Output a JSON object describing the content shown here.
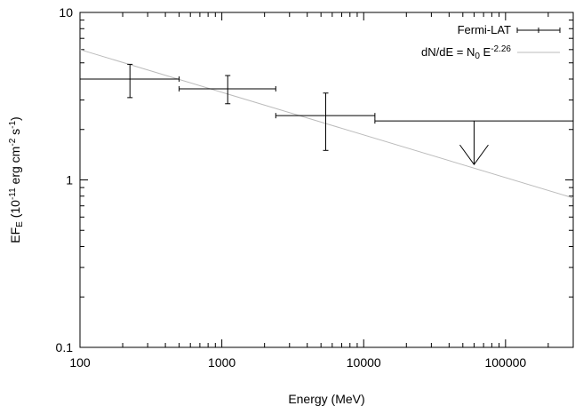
{
  "chart_data": {
    "type": "scatter",
    "xscale": "log",
    "yscale": "log",
    "xlim": [
      100,
      300000
    ],
    "ylim": [
      0.1,
      10
    ],
    "xlabel": "Energy (MeV)",
    "ylabel": {
      "main": "EF",
      "sub": "E",
      "units_open": " (10",
      "exp1": "-11",
      "units_mid": " erg cm",
      "exp2": "-2",
      "units_mid2": " s",
      "exp3": "-1",
      "units_close": ")"
    },
    "xticks": [
      {
        "value": 100,
        "label": "100"
      },
      {
        "value": 1000,
        "label": "1000"
      },
      {
        "value": 10000,
        "label": "10000"
      },
      {
        "value": 100000,
        "label": "100000"
      }
    ],
    "yticks": [
      {
        "value": 0.1,
        "label": "0.1"
      },
      {
        "value": 1,
        "label": "1"
      },
      {
        "value": 10,
        "label": "10"
      }
    ],
    "grid": false,
    "legend_position": "top-right",
    "series": [
      {
        "name": "Fermi-LAT",
        "kind": "errorbar",
        "color": "#000000",
        "points": [
          {
            "x": 225,
            "x_low": 100,
            "x_high": 500,
            "y": 4.0,
            "y_low": 3.1,
            "y_high": 4.9
          },
          {
            "x": 1100,
            "x_low": 500,
            "x_high": 2400,
            "y": 3.5,
            "y_low": 2.85,
            "y_high": 4.2
          },
          {
            "x": 5400,
            "x_low": 2400,
            "x_high": 12000,
            "y": 2.42,
            "y_low": 1.5,
            "y_high": 3.3
          }
        ],
        "upper_limits": [
          {
            "x": 60000,
            "x_low": 12000,
            "x_high": 300000,
            "y": 2.25
          }
        ]
      },
      {
        "name_parts": {
          "prefix": "dN/dE = N",
          "sub": "0",
          "mid": " E",
          "sup": "-2.26"
        },
        "kind": "powerlaw",
        "color": "#bbbbbb",
        "index": -2.26,
        "y_at_100": 6.0,
        "y_at_300000": 0.78
      }
    ]
  }
}
